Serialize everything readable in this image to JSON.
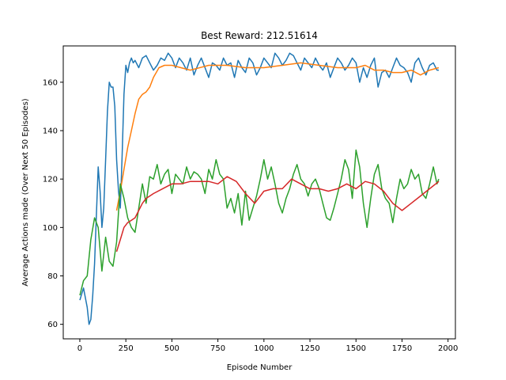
{
  "chart_data": {
    "type": "line",
    "title": "Best Reward:  212.51614",
    "xlabel": "Episode Number",
    "ylabel": "Average Actions made (Over Next 50 Episodes)",
    "xlim": [
      -90,
      2040
    ],
    "ylim": [
      54,
      175
    ],
    "xticks": [
      0,
      250,
      500,
      750,
      1000,
      1250,
      1500,
      1750,
      2000
    ],
    "yticks": [
      60,
      80,
      100,
      120,
      140,
      160
    ],
    "grid": false,
    "legend": "none",
    "series": [
      {
        "color": "#1f77b4",
        "x": [
          0,
          20,
          40,
          50,
          60,
          70,
          80,
          90,
          100,
          110,
          120,
          130,
          140,
          150,
          160,
          170,
          180,
          190,
          200,
          210,
          220,
          230,
          240,
          250,
          260,
          270,
          280,
          290,
          300,
          320,
          340,
          360,
          380,
          400,
          420,
          440,
          460,
          480,
          500,
          520,
          540,
          560,
          580,
          600,
          620,
          640,
          660,
          680,
          700,
          720,
          740,
          760,
          780,
          800,
          820,
          840,
          860,
          880,
          900,
          920,
          940,
          960,
          980,
          1000,
          1020,
          1040,
          1060,
          1080,
          1100,
          1120,
          1140,
          1160,
          1180,
          1200,
          1220,
          1240,
          1260,
          1280,
          1300,
          1320,
          1340,
          1360,
          1380,
          1400,
          1420,
          1440,
          1460,
          1480,
          1500,
          1520,
          1540,
          1560,
          1580,
          1600,
          1620,
          1640,
          1660,
          1680,
          1700,
          1720,
          1740,
          1760,
          1780,
          1800,
          1820,
          1840,
          1860,
          1880,
          1900,
          1920,
          1940,
          1950
        ],
        "values": [
          70,
          75,
          67,
          60,
          62,
          72,
          85,
          105,
          125,
          115,
          100,
          108,
          128,
          148,
          160,
          158,
          158,
          150,
          128,
          115,
          108,
          130,
          155,
          167,
          164,
          168,
          170,
          168,
          169,
          166,
          170,
          171,
          168,
          165,
          167,
          170,
          169,
          172,
          170,
          166,
          170,
          168,
          165,
          170,
          163,
          167,
          170,
          166,
          162,
          168,
          167,
          165,
          170,
          167,
          168,
          162,
          169,
          166,
          164,
          170,
          168,
          163,
          166,
          170,
          168,
          166,
          172,
          170,
          167,
          169,
          172,
          171,
          168,
          165,
          170,
          168,
          166,
          170,
          167,
          165,
          168,
          162,
          166,
          170,
          168,
          165,
          167,
          170,
          168,
          160,
          166,
          162,
          167,
          170,
          158,
          164,
          165,
          162,
          166,
          170,
          167,
          166,
          164,
          160,
          168,
          170,
          166,
          163,
          167,
          168,
          165,
          165
        ]
      },
      {
        "color": "#ff7f0e",
        "x": [
          200,
          220,
          240,
          260,
          280,
          300,
          320,
          340,
          360,
          380,
          400,
          430,
          460,
          500,
          600,
          700,
          800,
          900,
          1000,
          1100,
          1200,
          1300,
          1400,
          1500,
          1550,
          1600,
          1650,
          1700,
          1750,
          1800,
          1850,
          1900,
          1950
        ],
        "values": [
          107,
          115,
          124,
          133,
          140,
          147,
          153,
          155,
          156,
          158,
          162,
          166,
          167,
          167,
          165,
          167,
          167,
          166,
          166,
          167,
          168,
          167,
          166,
          166,
          167,
          165,
          165,
          164,
          164,
          165,
          163,
          165,
          166
        ]
      },
      {
        "color": "#2ca02c",
        "x": [
          0,
          20,
          40,
          60,
          80,
          100,
          120,
          140,
          160,
          180,
          200,
          220,
          240,
          260,
          280,
          300,
          320,
          340,
          360,
          380,
          400,
          420,
          440,
          460,
          480,
          500,
          520,
          540,
          560,
          580,
          600,
          620,
          640,
          660,
          680,
          700,
          720,
          740,
          760,
          780,
          800,
          820,
          840,
          860,
          880,
          900,
          920,
          940,
          960,
          980,
          1000,
          1020,
          1040,
          1060,
          1080,
          1100,
          1120,
          1140,
          1160,
          1180,
          1200,
          1220,
          1240,
          1260,
          1280,
          1300,
          1320,
          1340,
          1360,
          1380,
          1400,
          1420,
          1440,
          1460,
          1480,
          1500,
          1520,
          1540,
          1560,
          1580,
          1600,
          1620,
          1640,
          1660,
          1680,
          1700,
          1720,
          1740,
          1760,
          1780,
          1800,
          1820,
          1840,
          1860,
          1880,
          1900,
          1920,
          1940,
          1950
        ],
        "values": [
          72,
          78,
          80,
          95,
          104,
          100,
          82,
          96,
          86,
          84,
          94,
          118,
          112,
          104,
          100,
          98,
          108,
          118,
          110,
          121,
          120,
          126,
          118,
          122,
          124,
          114,
          122,
          120,
          118,
          125,
          120,
          123,
          122,
          120,
          114,
          124,
          120,
          128,
          122,
          120,
          108,
          112,
          106,
          114,
          101,
          115,
          103,
          108,
          113,
          120,
          128,
          120,
          125,
          118,
          110,
          106,
          112,
          116,
          122,
          126,
          120,
          118,
          113,
          118,
          120,
          116,
          110,
          104,
          103,
          108,
          114,
          120,
          128,
          124,
          112,
          132,
          125,
          110,
          100,
          112,
          122,
          126,
          116,
          112,
          110,
          102,
          112,
          120,
          116,
          118,
          124,
          120,
          122,
          114,
          112,
          118,
          125,
          118,
          120
        ]
      },
      {
        "color": "#d62728",
        "x": [
          200,
          220,
          240,
          260,
          280,
          300,
          320,
          340,
          360,
          380,
          400,
          450,
          500,
          550,
          600,
          650,
          700,
          750,
          800,
          850,
          900,
          950,
          1000,
          1050,
          1100,
          1150,
          1200,
          1250,
          1300,
          1350,
          1400,
          1450,
          1500,
          1550,
          1600,
          1650,
          1700,
          1750,
          1800,
          1850,
          1900,
          1950
        ],
        "values": [
          90,
          95,
          100,
          102,
          103,
          104,
          107,
          110,
          112,
          113,
          114,
          116,
          118,
          118,
          119,
          119,
          119,
          118,
          121,
          119,
          114,
          110,
          115,
          116,
          116,
          120,
          118,
          116,
          116,
          115,
          116,
          118,
          116,
          119,
          118,
          115,
          110,
          107,
          110,
          113,
          116,
          119
        ]
      }
    ]
  }
}
